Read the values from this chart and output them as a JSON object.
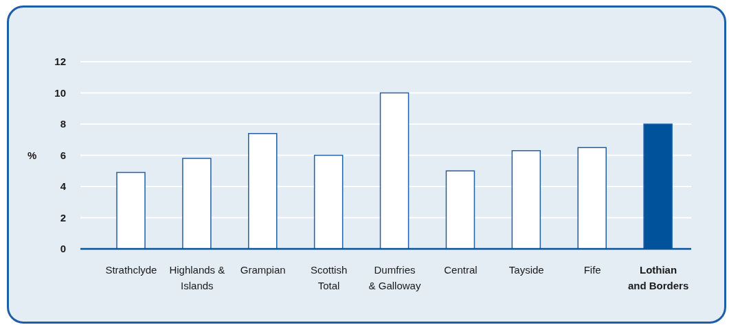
{
  "chart_data": {
    "type": "bar",
    "ylabel": "%",
    "categories": [
      "Strathclyde",
      "Highlands &\nIslands",
      "Grampian",
      "Scottish\nTotal",
      "Dumfries\n& Galloway",
      "Central",
      "Tayside",
      "Fife",
      "Lothian\nand Borders"
    ],
    "values": [
      4.9,
      5.8,
      7.4,
      6.0,
      10.0,
      5.0,
      6.3,
      6.5,
      8.0
    ],
    "colors": [
      "#ffffff",
      "#ffffff",
      "#ffffff",
      "#ffffff",
      "#ffffff",
      "#ffffff",
      "#ffffff",
      "#ffffff",
      "#00539b"
    ],
    "ylim": [
      0,
      12
    ],
    "yticks": [
      0,
      2,
      4,
      6,
      8,
      10,
      12
    ],
    "grid": "y"
  }
}
